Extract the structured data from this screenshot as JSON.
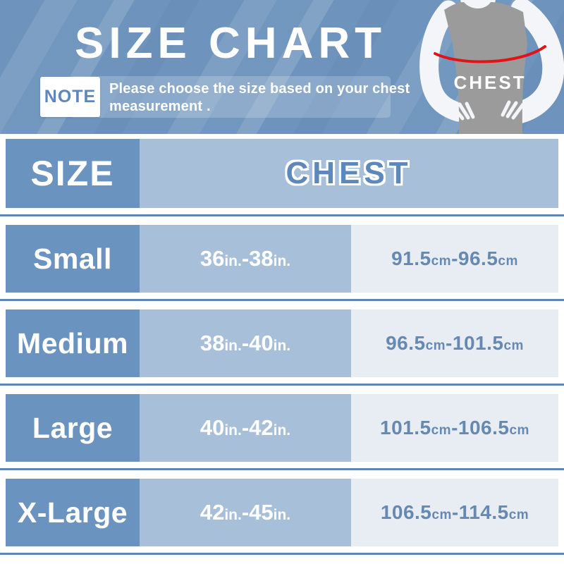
{
  "colors": {
    "banner_bg": "#6E94BD",
    "cell_dark": "#6B93BF",
    "cell_mid": "#A8BFD9",
    "cell_light": "#E8EDF4",
    "divider": "#5D87B4",
    "cm_text": "#6689B2",
    "note_text": "#5D87B8",
    "chest_outline_text": "#5D88BB",
    "chest_line": "#E01319",
    "shirt_gray": "#9B9B9B",
    "skin": "#F3F5F8"
  },
  "banner": {
    "title": "SIZE CHART",
    "note_label": "NOTE",
    "note_text": "Please choose the size based on your chest measurement .",
    "illustration_label": "CHEST"
  },
  "table": {
    "header": {
      "size_label": "SIZE",
      "chest_label": "CHEST"
    },
    "units": {
      "inches": "in.",
      "centimeters": "cm"
    },
    "rows": [
      {
        "size": "Small",
        "in_min": "36",
        "in_max": "38",
        "cm_min": "91.5",
        "cm_max": "96.5"
      },
      {
        "size": "Medium",
        "in_min": "38",
        "in_max": "40",
        "cm_min": "96.5",
        "cm_max": "101.5"
      },
      {
        "size": "Large",
        "in_min": "40",
        "in_max": "42",
        "cm_min": "101.5",
        "cm_max": "106.5"
      },
      {
        "size": "X-Large",
        "in_min": "42",
        "in_max": "45",
        "cm_min": "106.5",
        "cm_max": "114.5"
      }
    ]
  },
  "chart_data": {
    "type": "table",
    "title": "SIZE CHART",
    "note": "Please choose the size based on your chest measurement .",
    "columns": [
      "SIZE",
      "CHEST (in.)",
      "CHEST (cm)"
    ],
    "rows": [
      [
        "Small",
        "36in.-38in.",
        "91.5cm-96.5cm"
      ],
      [
        "Medium",
        "38in.-40in.",
        "96.5cm-101.5cm"
      ],
      [
        "Large",
        "40in.-42in.",
        "101.5cm-106.5cm"
      ],
      [
        "X-Large",
        "42in.-45in.",
        "106.5cm-114.5cm"
      ]
    ]
  }
}
